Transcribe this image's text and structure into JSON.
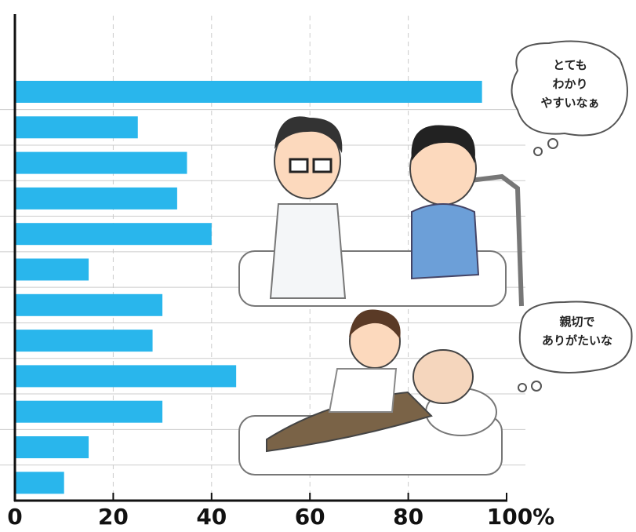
{
  "chart_data": {
    "type": "bar",
    "orientation": "horizontal",
    "categories": [
      null,
      null,
      null,
      null,
      null,
      null,
      null,
      null,
      null,
      null,
      null,
      null
    ],
    "values": [
      95,
      25,
      35,
      33,
      40,
      15,
      30,
      28,
      45,
      30,
      15,
      10
    ],
    "color": "#29b6ec",
    "xlim": [
      0,
      100
    ],
    "xticks": [
      0,
      20,
      40,
      60,
      80,
      {
        "value": 100,
        "label": "100%"
      }
    ],
    "grid": true
  },
  "bubbles": [
    {
      "lines": [
        "とても",
        "わかり",
        "やすいなぁ"
      ]
    },
    {
      "lines": [
        "親切で",
        "ありがたいな"
      ]
    }
  ]
}
